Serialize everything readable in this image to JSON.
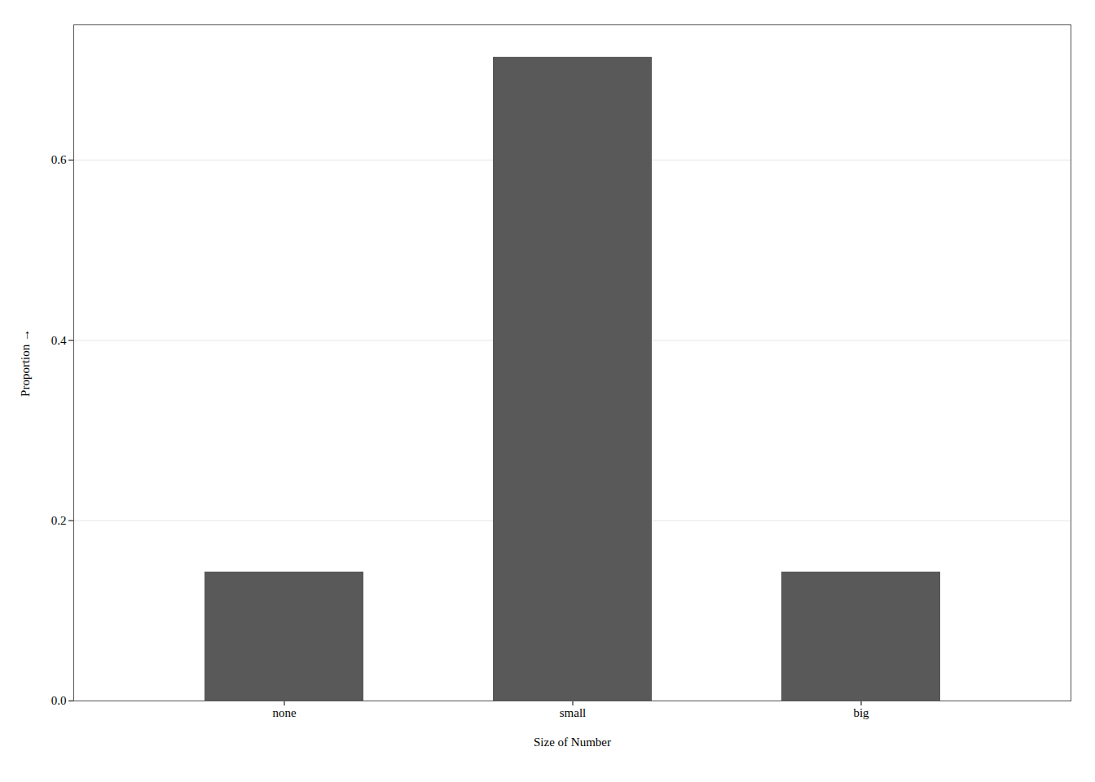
{
  "chart_data": {
    "type": "bar",
    "categories": [
      "none",
      "small",
      "big"
    ],
    "values": [
      0.143,
      0.714,
      0.143
    ],
    "color": "#595959",
    "xlabel": "Size of Number",
    "ylabel": "Proportion",
    "ylim": [
      0,
      0.75
    ],
    "yticks": [
      {
        "value": 0,
        "label": "0.0"
      },
      0.2,
      0.4,
      0.6
    ],
    "grid": true
  }
}
